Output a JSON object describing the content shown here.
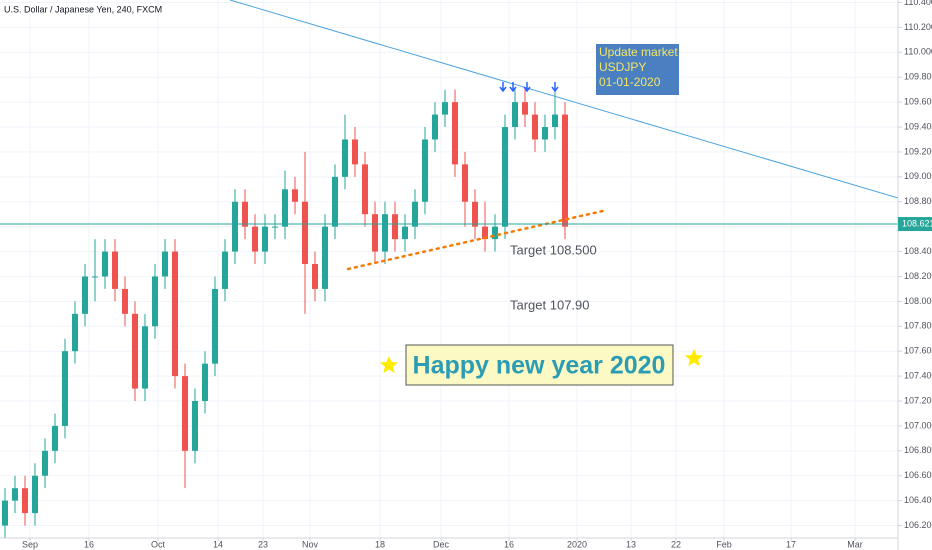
{
  "chart_data": {
    "type": "candlestick",
    "title": "U.S. Dollar / Japanese Yen, 240, FXCM",
    "up_color": "#26a69a",
    "down_color": "#ef5350",
    "open": [
      106.2,
      106.4,
      106.5,
      106.3,
      106.6,
      106.8,
      107.0,
      107.6,
      107.9,
      108.2,
      108.2,
      108.4,
      108.1,
      107.9,
      107.3,
      107.8,
      108.2,
      108.4,
      107.4,
      106.8,
      107.2,
      107.5,
      108.1,
      108.4,
      108.8,
      108.6,
      108.4,
      108.6,
      108.6,
      108.9,
      108.8,
      108.3,
      108.1,
      108.6,
      109.0,
      109.3,
      109.1,
      108.7,
      108.4,
      108.7,
      108.5,
      108.6,
      108.8,
      109.3,
      109.5,
      109.6,
      109.1,
      108.8,
      108.6,
      108.5,
      108.6,
      109.4,
      109.6,
      109.5,
      109.3,
      109.4,
      109.5
    ],
    "high": [
      106.5,
      106.6,
      106.6,
      106.7,
      106.9,
      107.1,
      107.7,
      108.0,
      108.3,
      108.5,
      108.5,
      108.5,
      108.2,
      108.0,
      107.9,
      108.3,
      108.5,
      108.5,
      107.5,
      107.3,
      107.6,
      108.2,
      108.5,
      108.9,
      108.9,
      108.7,
      108.7,
      108.7,
      109.05,
      109.0,
      109.2,
      108.4,
      108.7,
      109.1,
      109.5,
      109.4,
      109.2,
      108.8,
      108.8,
      108.8,
      108.7,
      108.9,
      109.4,
      109.6,
      109.7,
      109.7,
      109.2,
      108.9,
      108.8,
      108.7,
      109.5,
      109.7,
      109.7,
      109.6,
      109.5,
      109.7,
      109.6
    ],
    "low": [
      106.1,
      106.3,
      106.2,
      106.2,
      106.5,
      106.7,
      106.9,
      107.5,
      107.8,
      108.0,
      108.1,
      108.0,
      107.8,
      107.2,
      107.2,
      107.7,
      108.1,
      107.3,
      106.5,
      106.7,
      107.1,
      107.4,
      108.0,
      108.3,
      108.5,
      108.3,
      108.3,
      108.5,
      108.5,
      108.7,
      107.9,
      108.0,
      108.0,
      108.5,
      108.9,
      109.0,
      108.6,
      108.3,
      108.3,
      108.4,
      108.4,
      108.5,
      108.7,
      109.2,
      109.4,
      109.0,
      108.6,
      108.5,
      108.4,
      108.4,
      108.5,
      109.3,
      109.4,
      109.2,
      109.2,
      109.3,
      108.5
    ],
    "close": [
      106.4,
      106.5,
      106.3,
      106.6,
      106.8,
      107.0,
      107.6,
      107.9,
      108.2,
      108.2,
      108.4,
      108.1,
      107.9,
      107.3,
      107.8,
      108.2,
      108.4,
      107.4,
      106.8,
      107.2,
      107.5,
      108.1,
      108.4,
      108.8,
      108.6,
      108.4,
      108.6,
      108.6,
      108.9,
      108.8,
      108.3,
      108.1,
      108.6,
      109.0,
      109.3,
      109.1,
      108.7,
      108.4,
      108.7,
      108.5,
      108.6,
      108.8,
      109.3,
      109.5,
      109.6,
      109.1,
      108.8,
      108.6,
      108.5,
      108.6,
      109.4,
      109.6,
      109.5,
      109.3,
      109.4,
      109.5,
      108.6
    ],
    "xlim": [
      -0.5,
      89.3
    ],
    "xticks": [
      {
        "value": 2.5,
        "label": "Sep"
      },
      {
        "value": 8.4,
        "label": "16"
      },
      {
        "value": 15.3,
        "label": "Oct"
      },
      {
        "value": 21.3,
        "label": "14"
      },
      {
        "value": 25.8,
        "label": "23"
      },
      {
        "value": 30.5,
        "label": "Nov"
      },
      {
        "value": 37.5,
        "label": "18"
      },
      {
        "value": 43.6,
        "label": "Dec"
      },
      {
        "value": 50.4,
        "label": "16"
      },
      {
        "value": 57.2,
        "label": "2020"
      },
      {
        "value": 62.6,
        "label": "13"
      },
      {
        "value": 67.1,
        "label": "22"
      },
      {
        "value": 71.9,
        "label": "Feb"
      },
      {
        "value": 78.6,
        "label": "17"
      },
      {
        "value": 85,
        "label": "Mar"
      }
    ],
    "ylim": [
      106.1,
      110.42
    ],
    "yticks": [
      {
        "value": 106.2,
        "label": "106.200"
      },
      {
        "value": 106.4,
        "label": "106.400"
      },
      {
        "value": 106.6,
        "label": "106.600"
      },
      {
        "value": 106.8,
        "label": "106.800"
      },
      {
        "value": 107.0,
        "label": "107.000"
      },
      {
        "value": 107.2,
        "label": "107.200"
      },
      {
        "value": 107.4,
        "label": "107.400"
      },
      {
        "value": 107.6,
        "label": "107.600"
      },
      {
        "value": 107.8,
        "label": "107.800"
      },
      {
        "value": 108.0,
        "label": "108.000"
      },
      {
        "value": 108.2,
        "label": "108.200"
      },
      {
        "value": 108.4,
        "label": "108.400"
      },
      {
        "value": 108.6,
        "label": "108.600"
      },
      {
        "value": 108.8,
        "label": "108.800"
      },
      {
        "value": 109.0,
        "label": "109.000"
      },
      {
        "value": 109.2,
        "label": "109.200"
      },
      {
        "value": 109.4,
        "label": "109.400"
      },
      {
        "value": 109.6,
        "label": "109.600"
      },
      {
        "value": 109.8,
        "label": "109.800"
      },
      {
        "value": 110.0,
        "label": "110.000"
      },
      {
        "value": 110.2,
        "label": "110.200"
      },
      {
        "value": 110.4,
        "label": "110.400"
      }
    ],
    "grid": true,
    "last_price": 108.621,
    "last_price_color": "#26a69a",
    "lines": [
      {
        "x": [
          22.5,
          89.3
        ],
        "y": [
          110.42,
          108.83
        ],
        "color": "#4aa3df",
        "dotted": false
      },
      {
        "x": [
          34.3,
          60
        ],
        "y": [
          108.26,
          108.73
        ],
        "color": "#f57c00",
        "dotted": true
      }
    ],
    "annotations": {
      "update_box": [
        "Update market",
        "USDJPY",
        "01-01-2020"
      ],
      "target1": "Target 108.500",
      "target2": "Target 107.90",
      "greeting": "Happy new year 2020"
    }
  }
}
